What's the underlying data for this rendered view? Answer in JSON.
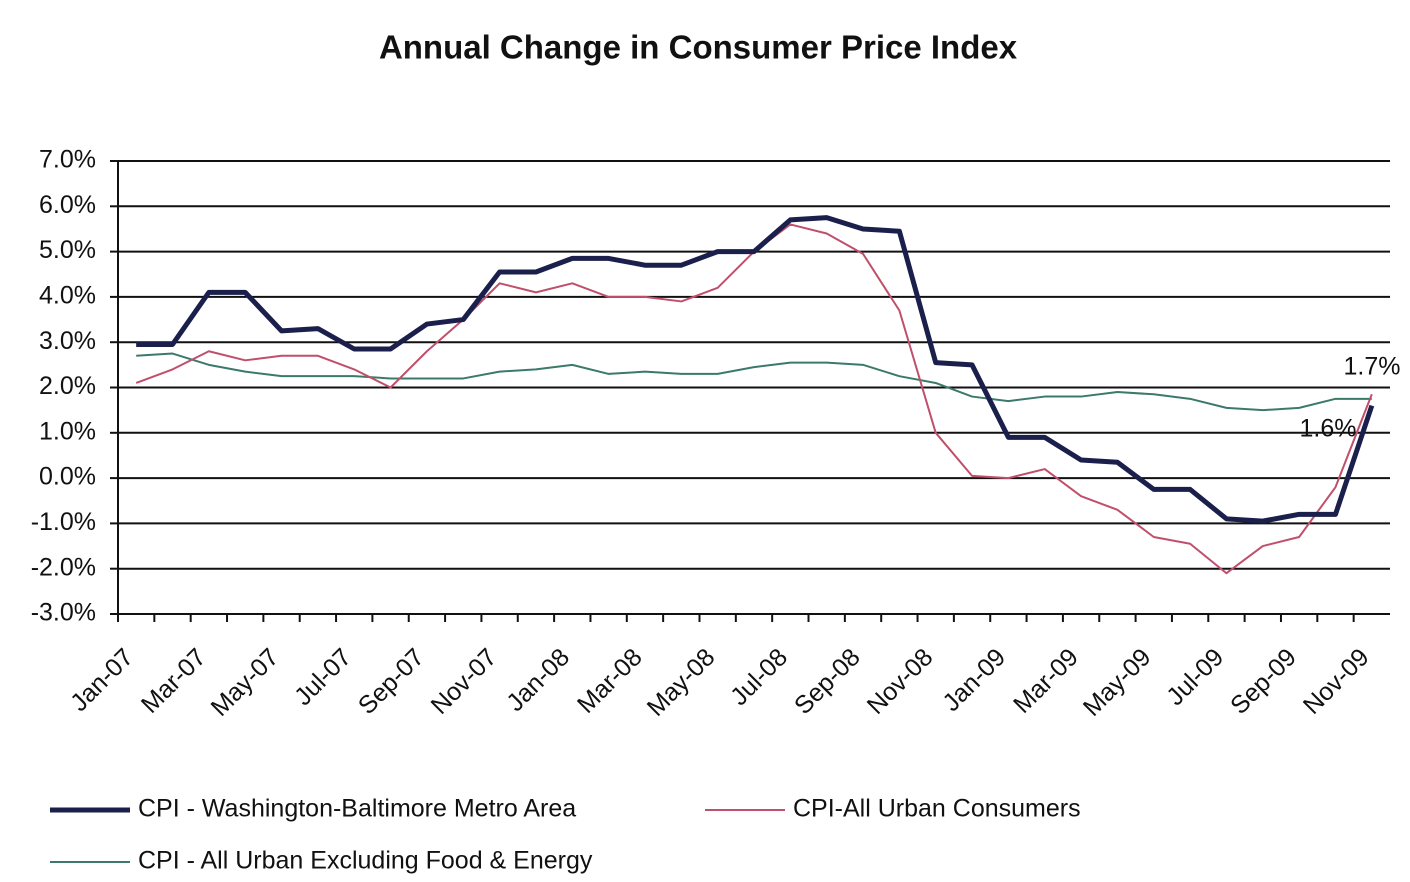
{
  "chart_data": {
    "type": "line",
    "title": "Annual Change in Consumer Price Index",
    "categories": [
      "Jan-07",
      null,
      "Mar-07",
      null,
      "May-07",
      null,
      "Jul-07",
      null,
      "Sep-07",
      null,
      "Nov-07",
      null,
      "Jan-08",
      null,
      "Mar-08",
      null,
      "May-08",
      null,
      "Jul-08",
      null,
      "Sep-08",
      null,
      "Nov-08",
      null,
      "Jan-09",
      null,
      "Mar-09",
      null,
      "May-09",
      null,
      "Jul-09",
      null,
      "Sep-09",
      null,
      "Nov-09"
    ],
    "series": [
      {
        "name": "CPI - Washington-Baltimore Metro Area",
        "color": "#1b1f4b",
        "values": [
          2.95,
          2.95,
          4.1,
          4.1,
          3.25,
          3.3,
          2.85,
          2.85,
          3.4,
          3.5,
          4.55,
          4.55,
          4.85,
          4.85,
          4.7,
          4.7,
          5.0,
          5.0,
          5.7,
          5.75,
          5.5,
          5.45,
          2.55,
          2.5,
          0.9,
          0.9,
          0.4,
          0.35,
          -0.25,
          -0.25,
          -0.9,
          -0.95,
          -0.8,
          -0.8,
          1.6
        ]
      },
      {
        "name": "CPI-All Urban Consumers",
        "color": "#c04f6b",
        "values": [
          2.1,
          2.4,
          2.8,
          2.6,
          2.7,
          2.7,
          2.4,
          2.0,
          2.8,
          3.5,
          4.3,
          4.1,
          4.3,
          4.0,
          4.0,
          3.9,
          4.2,
          5.0,
          5.6,
          5.4,
          4.95,
          3.7,
          1.0,
          0.05,
          0.0,
          0.2,
          -0.4,
          -0.7,
          -1.3,
          -1.45,
          -2.1,
          -1.5,
          -1.3,
          -0.2,
          1.85
        ]
      },
      {
        "name": "CPI - All Urban Excluding Food & Energy",
        "color": "#3b7a6b",
        "values": [
          2.7,
          2.75,
          2.5,
          2.35,
          2.25,
          2.25,
          2.25,
          2.2,
          2.2,
          2.2,
          2.35,
          2.4,
          2.5,
          2.3,
          2.35,
          2.3,
          2.3,
          2.45,
          2.55,
          2.55,
          2.5,
          2.25,
          2.1,
          1.8,
          1.7,
          1.8,
          1.8,
          1.9,
          1.85,
          1.75,
          1.55,
          1.5,
          1.55,
          1.75,
          1.75
        ]
      }
    ],
    "annotations": [
      "1.7%",
      "1.6%"
    ],
    "ylim": [
      -3,
      7
    ],
    "yticks": [
      {
        "value": -3,
        "label": "-3.0%"
      },
      {
        "value": -2,
        "label": "-2.0%"
      },
      {
        "value": -1,
        "label": "-1.0%"
      },
      {
        "value": 0,
        "label": "0.0%"
      },
      {
        "value": 1,
        "label": "1.0%"
      },
      {
        "value": 2,
        "label": "2.0%"
      },
      {
        "value": 3,
        "label": "3.0%"
      },
      {
        "value": 4,
        "label": "4.0%"
      },
      {
        "value": 5,
        "label": "5.0%"
      },
      {
        "value": 6,
        "label": "6.0%"
      },
      {
        "value": 7,
        "label": "7.0%"
      }
    ],
    "grid": true
  }
}
